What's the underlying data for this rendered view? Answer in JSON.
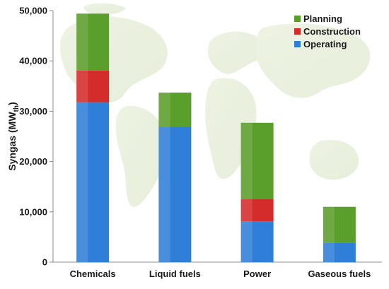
{
  "chart_data": {
    "type": "bar",
    "stacked": true,
    "categories": [
      "Chemicals",
      "Liquid fuels",
      "Power",
      "Gaseous fuels"
    ],
    "series": [
      {
        "name": "Operating",
        "color": "#2f7fd8",
        "values": [
          31800,
          26900,
          8100,
          3900
        ]
      },
      {
        "name": "Construction",
        "color": "#d42b2b",
        "values": [
          6300,
          0,
          4400,
          0
        ]
      },
      {
        "name": "Planning",
        "color": "#5a9e2b",
        "values": [
          11300,
          6800,
          15200,
          7100
        ]
      }
    ],
    "ylabel": "Syngas (MW",
    "ylabel_sub": "th",
    "ylabel_close": ")",
    "ylim": [
      0,
      50000
    ],
    "yticks": [
      "0",
      "10,000",
      "20,000",
      "30,000",
      "40,000",
      "50,000"
    ],
    "ytick_values": [
      0,
      10000,
      20000,
      30000,
      40000,
      50000
    ],
    "legend_position": "top-right",
    "legend_order": [
      "Planning",
      "Construction",
      "Operating"
    ],
    "grid": false,
    "background": "world-map"
  }
}
